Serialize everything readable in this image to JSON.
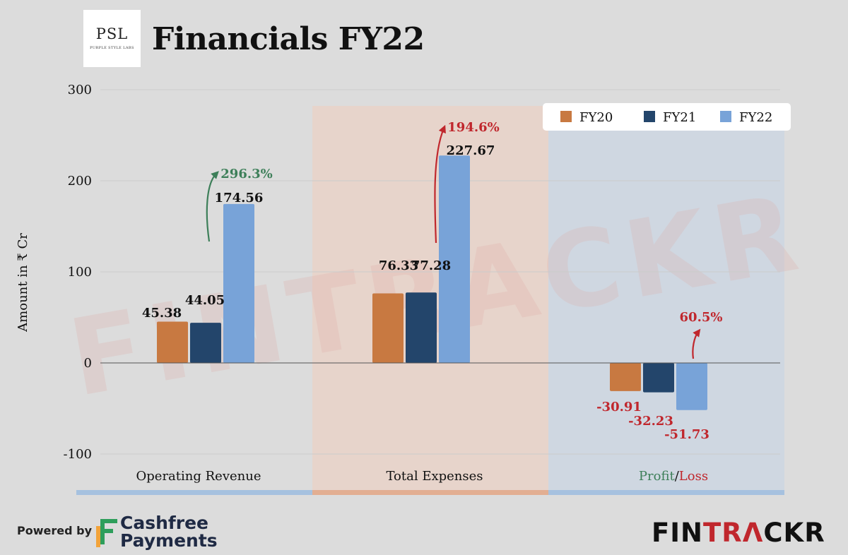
{
  "header": {
    "logo_main": "PSL",
    "logo_sub": "PURPLE STYLE LABS",
    "title": "Financials FY22"
  },
  "chart_data": {
    "type": "bar",
    "title": "Financials FY22",
    "ylabel": "Amount in ₹ Cr",
    "ylim": [
      -100,
      300
    ],
    "yticks": [
      300,
      200,
      100,
      0,
      -100
    ],
    "categories": [
      "Operating Revenue",
      "Total Expenses",
      "Profit/Loss"
    ],
    "series": [
      {
        "name": "FY20",
        "color": "#c87941",
        "values": [
          45.38,
          76.33,
          -30.91
        ]
      },
      {
        "name": "FY21",
        "color": "#23456b",
        "values": [
          44.05,
          77.28,
          -32.23
        ]
      },
      {
        "name": "FY22",
        "color": "#78a3d8",
        "values": [
          174.56,
          227.67,
          -51.73
        ]
      }
    ],
    "data_labels": [
      [
        "45.38",
        "44.05",
        "174.56"
      ],
      [
        "76.33",
        "77.28",
        "227.67"
      ],
      [
        "-30.91",
        "-32.23",
        "-51.73"
      ]
    ],
    "growth_annotations": [
      {
        "category": "Operating Revenue",
        "text": "296.3%",
        "color": "#3d7f59"
      },
      {
        "category": "Total Expenses",
        "text": "194.6%",
        "color": "#c0272d"
      },
      {
        "category": "Profit/Loss",
        "text": "60.5%",
        "color": "#c0272d"
      }
    ],
    "category_label_parts": [
      [
        {
          "text": "Operating Revenue",
          "color": "#111111"
        }
      ],
      [
        {
          "text": "Total Expenses",
          "color": "#111111"
        }
      ],
      [
        {
          "text": "Profit",
          "color": "#3d7f59"
        },
        {
          "text": "/",
          "color": "#111111"
        },
        {
          "text": "Loss",
          "color": "#c0272d"
        }
      ]
    ],
    "section_colors": [
      "#dcdcdc",
      "#e9d2c8",
      "#ccd6e2"
    ],
    "section_band_colors": [
      "#a6c1df",
      "#e2ae92",
      "#a6c1df"
    ],
    "legend_position": "top-right",
    "grid": true,
    "watermark": "FINTRACKR"
  },
  "footer": {
    "powered_by": "Powered by",
    "sponsor_line1": "Cashfree",
    "sponsor_line2": "Payments",
    "brand_part1": "FIN",
    "brand_part2": "TR",
    "brand_part3": "Λ",
    "brand_part4": "CKR",
    "brand_accent_color": "#c0272d"
  }
}
